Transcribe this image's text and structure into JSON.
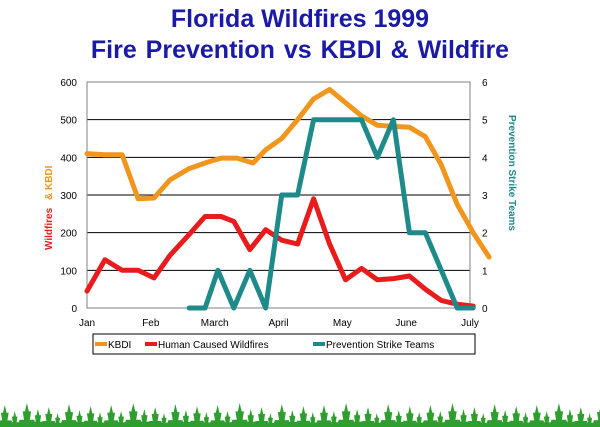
{
  "title": {
    "line1": "Florida Wildfires 1999",
    "line2": "Fire Prevention    vs    KBDI & Wildfire"
  },
  "chart_data": {
    "type": "line",
    "x_categories": [
      "Jan",
      "Feb",
      "March",
      "April",
      "May",
      "June",
      "July"
    ],
    "y_left": {
      "label_wildfires": "Wildfires",
      "label_kbdi": "& KBDI",
      "ticks": [
        "0",
        "100",
        "200",
        "300",
        "400",
        "500",
        "600"
      ],
      "range": [
        0,
        600
      ]
    },
    "y_right": {
      "label": "Prevention Strike Teams",
      "ticks": [
        "0",
        "1",
        "2",
        "3",
        "4",
        "5",
        "6"
      ],
      "range": [
        0,
        6
      ]
    },
    "grid": "horizontal",
    "legend_position": "bottom",
    "series": [
      {
        "name": "KBDI",
        "color": "#f0961e",
        "axis": "left",
        "points": [
          [
            0.0,
            410
          ],
          [
            0.28,
            407
          ],
          [
            0.55,
            407
          ],
          [
            0.8,
            290
          ],
          [
            1.05,
            292
          ],
          [
            1.3,
            340
          ],
          [
            1.6,
            370
          ],
          [
            1.9,
            388
          ],
          [
            2.1,
            398
          ],
          [
            2.35,
            398
          ],
          [
            2.6,
            385
          ],
          [
            2.8,
            420
          ],
          [
            3.05,
            450
          ],
          [
            3.3,
            500
          ],
          [
            3.55,
            555
          ],
          [
            3.8,
            580
          ],
          [
            4.05,
            545
          ],
          [
            4.3,
            510
          ],
          [
            4.55,
            485
          ],
          [
            4.8,
            482
          ],
          [
            5.05,
            480
          ],
          [
            5.3,
            455
          ],
          [
            5.55,
            380
          ],
          [
            5.8,
            275
          ],
          [
            6.05,
            200
          ],
          [
            6.3,
            135
          ]
        ]
      },
      {
        "name": "Human Caused Wildfires",
        "color": "#e81c1c",
        "axis": "left",
        "points": [
          [
            0.0,
            45
          ],
          [
            0.28,
            128
          ],
          [
            0.55,
            100
          ],
          [
            0.8,
            100
          ],
          [
            1.05,
            80
          ],
          [
            1.3,
            140
          ],
          [
            1.6,
            195
          ],
          [
            1.85,
            243
          ],
          [
            2.1,
            243
          ],
          [
            2.3,
            230
          ],
          [
            2.55,
            155
          ],
          [
            2.8,
            208
          ],
          [
            3.05,
            180
          ],
          [
            3.3,
            170
          ],
          [
            3.55,
            290
          ],
          [
            3.8,
            170
          ],
          [
            4.05,
            75
          ],
          [
            4.3,
            105
          ],
          [
            4.55,
            75
          ],
          [
            4.8,
            78
          ],
          [
            5.05,
            85
          ],
          [
            5.3,
            50
          ],
          [
            5.55,
            20
          ],
          [
            5.8,
            10
          ],
          [
            6.05,
            5
          ]
        ]
      },
      {
        "name": "Prevention Strike Teams",
        "color": "#1e8a8a",
        "axis": "right",
        "points": [
          [
            1.6,
            0
          ],
          [
            1.85,
            0
          ],
          [
            2.05,
            1
          ],
          [
            2.3,
            0
          ],
          [
            2.55,
            1
          ],
          [
            2.8,
            0
          ],
          [
            3.05,
            3
          ],
          [
            3.3,
            3
          ],
          [
            3.55,
            5
          ],
          [
            3.8,
            5
          ],
          [
            4.05,
            5
          ],
          [
            4.3,
            5
          ],
          [
            4.55,
            4
          ],
          [
            4.8,
            5
          ],
          [
            5.05,
            2
          ],
          [
            5.3,
            2
          ],
          [
            5.55,
            1
          ],
          [
            5.8,
            0
          ],
          [
            6.05,
            0
          ]
        ]
      }
    ],
    "legend": [
      "KBDI",
      "Human Caused Wildfires",
      "Prevention Strike Teams"
    ]
  },
  "decorations": {
    "tree_color": "#2e9e2e",
    "tree_icon": "pine-tree-icon"
  }
}
